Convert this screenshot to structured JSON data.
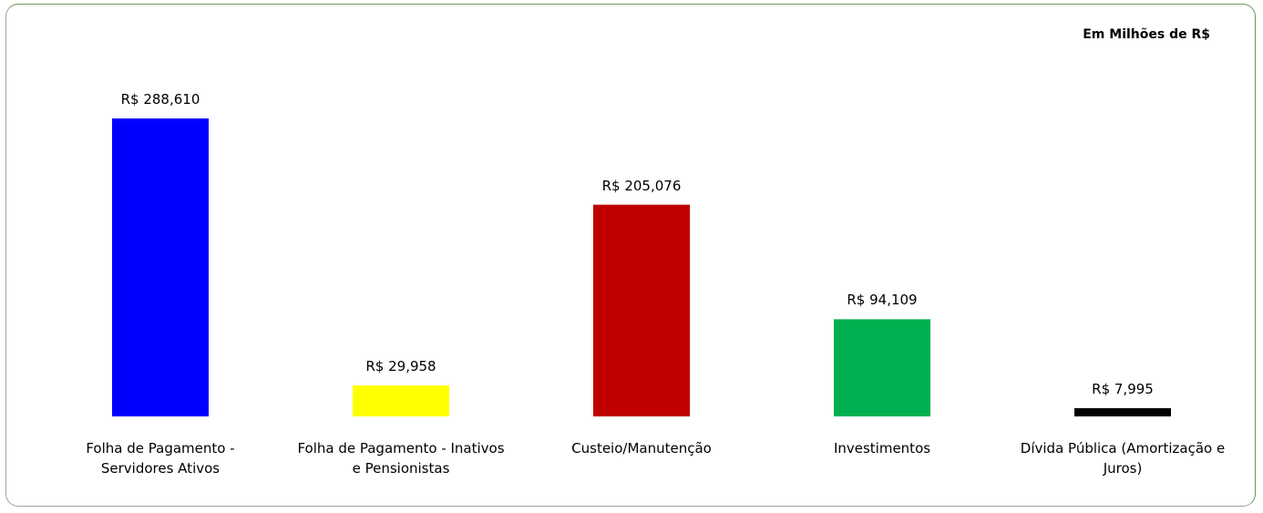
{
  "chart_data": {
    "type": "bar",
    "title": "Em Milhões de R$",
    "categories": [
      "Folha de Pagamento - Servidores Ativos",
      "Folha de Pagamento - Inativos e Pensionistas",
      "Custeio/Manutenção",
      "Investimentos",
      "Dívida Pública (Amortização e Juros)"
    ],
    "values": [
      288.61,
      29.958,
      205.076,
      94.109,
      7.995
    ],
    "value_labels": [
      "R$ 288,610",
      "R$ 29,958",
      "R$ 205,076",
      "R$ 94,109",
      "R$ 7,995"
    ],
    "colors": [
      "#0000ff",
      "#ffff00",
      "#c00000",
      "#00b050",
      "#000000"
    ]
  }
}
